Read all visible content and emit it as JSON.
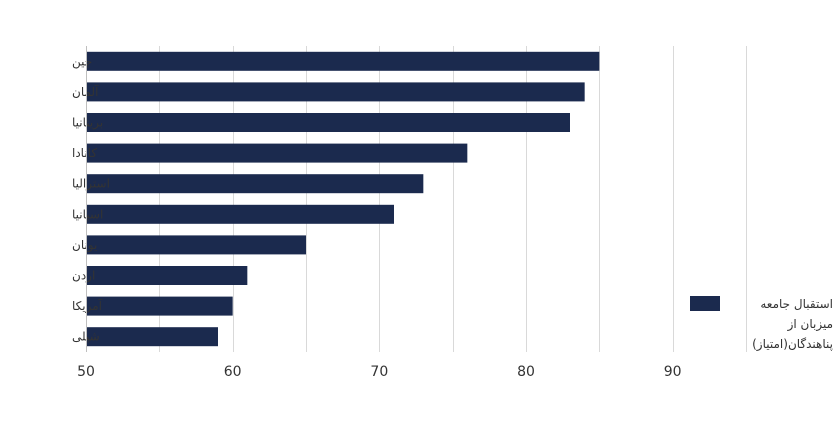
{
  "chart_data": {
    "type": "bar",
    "orientation": "horizontal",
    "categories": [
      "چین",
      "آلمان",
      "بریتانیا",
      "کانادا",
      "استرالیا",
      "اسپانیا",
      "یونان",
      "اردن",
      "آمریکا",
      "شیلی"
    ],
    "series": [
      {
        "name": "استقبال جامعه میزبان از پناهندگان(امتیاز)",
        "values": [
          85,
          84,
          83,
          76,
          73,
          71,
          65,
          61,
          60,
          59
        ],
        "color": "#1b2a4e"
      }
    ],
    "xlim": [
      50,
      95
    ],
    "xticks": [
      50,
      60,
      70,
      80,
      90
    ],
    "grid": true,
    "legend_position": "right"
  },
  "legend": {
    "lines": [
      "استقبال جامعه",
      "میزبان از",
      "پناهندگان(امتیاز)"
    ]
  },
  "colors": {
    "bar": "#1b2a4e",
    "grid": "#d9d9d9",
    "text": "#333333"
  }
}
